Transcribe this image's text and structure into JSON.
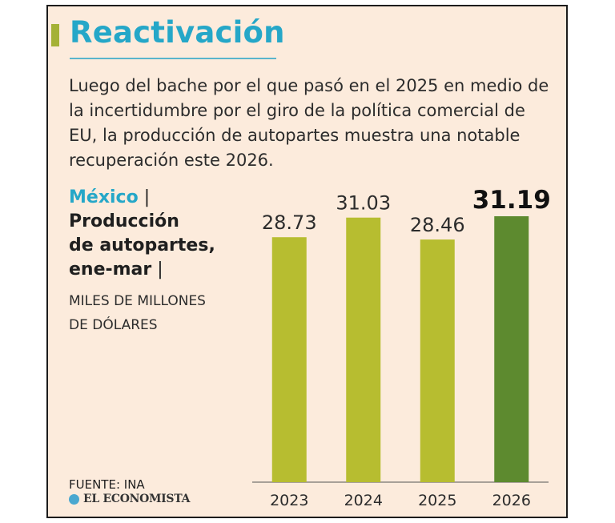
{
  "header": {
    "title": "Reactivación",
    "description": "Luego del bache por el que pasó en el 2025 en medio de la incertidumbre por el giro de la política comercial de EU, la producción de autopartes muestra una notable recuperación este 2026."
  },
  "side": {
    "country": "México",
    "separator": "|",
    "measure_line1": "Producción",
    "measure_line2": "de autopartes,",
    "measure_line3": "ene-mar",
    "units_line1": "MILES DE MILLONES",
    "units_line2": "DE DÓLARES"
  },
  "footer": {
    "source": "FUENTE: INA",
    "brand": "EL ECONOMISTA"
  },
  "colors": {
    "title": "#25a7c8",
    "bar": "#b7bd30",
    "bar_highlight": "#5d8a2f",
    "background": "#fcebdc"
  },
  "chart_data": {
    "type": "bar",
    "categories": [
      "2023",
      "2024",
      "2025",
      "2026"
    ],
    "values": [
      28.73,
      31.03,
      28.46,
      31.19
    ],
    "value_labels": [
      "28.73",
      "31.03",
      "28.46",
      "31.19"
    ],
    "highlight_index": 3,
    "ylim": [
      0,
      31.19
    ],
    "grid": false,
    "legend": "none"
  }
}
